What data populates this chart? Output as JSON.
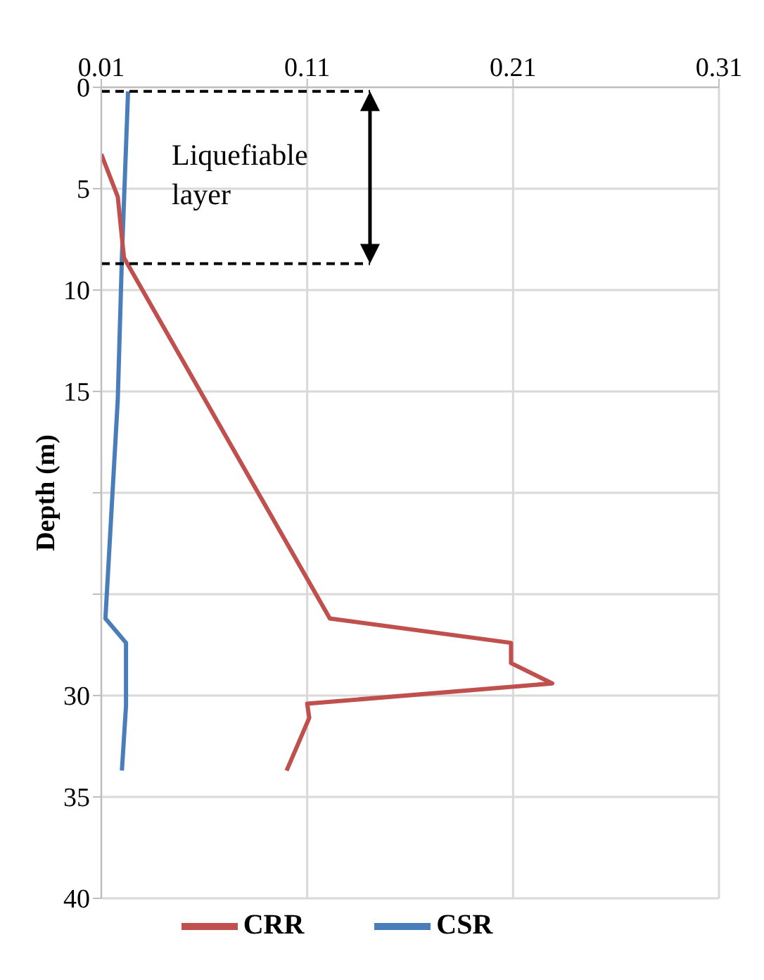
{
  "chart_data": {
    "type": "line",
    "ylabel": "Depth (m)",
    "xlim": [
      0.01,
      0.31
    ],
    "xticks": [
      0.01,
      0.11,
      0.21,
      0.31
    ],
    "ylim": [
      40,
      0
    ],
    "yticks": [
      0,
      5,
      10,
      15,
      {
        "value": 20,
        "label": null
      },
      {
        "value": 25,
        "label": null
      },
      30,
      35,
      40
    ],
    "series": [
      {
        "name": "CSR",
        "color": "#4a7ebb",
        "x": [
          0.023,
          0.02,
          0.018,
          0.012,
          0.022,
          0.022,
          0.02
        ],
        "values": [
          0.2,
          8.4,
          15.4,
          26.2,
          27.4,
          30.5,
          33.7
        ]
      },
      {
        "name": "CRR",
        "color": "#c0504d",
        "x": [
          0.01,
          0.018,
          0.021,
          0.121,
          0.209,
          0.209,
          0.229,
          0.11,
          0.111,
          0.1
        ],
        "values": [
          3.3,
          5.4,
          8.4,
          26.2,
          27.4,
          28.4,
          29.4,
          30.4,
          31.1,
          33.7
        ]
      }
    ],
    "ref_lines": [
      {
        "axis": "y",
        "value": 0.2,
        "color": "#000000",
        "line_style": "dashed"
      },
      {
        "axis": "y",
        "value": 8.7,
        "color": "#000000",
        "line_style": "dashed"
      }
    ],
    "annotations": [
      "Liquefiable layer"
    ],
    "grid": true,
    "legend": "bottom",
    "marker": "none",
    "line_style": "solid"
  }
}
